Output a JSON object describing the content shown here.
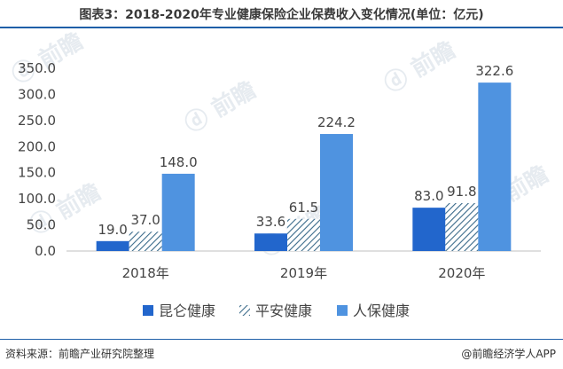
{
  "title": "图表3：2018-2020年专业健康保险企业保费收入变化情况(单位：亿元)",
  "footer": {
    "source": "资料来源：前瞻产业研究院整理",
    "brand": "@前瞻经济学人APP"
  },
  "colors": {
    "rule": "#1f5fa8",
    "kunlun": "#2266cc",
    "pingan": "#3a6a8a",
    "renbao": "#4f93e0"
  },
  "chart_data": {
    "type": "bar",
    "title": "图表3：2018-2020年专业健康保险企业保费收入变化情况(单位：亿元)",
    "categories": [
      "2018年",
      "2019年",
      "2020年"
    ],
    "series": [
      {
        "name": "昆仑健康",
        "values": [
          19.0,
          33.6,
          83.0
        ],
        "labels": [
          "19.0",
          "33.6",
          "83.0"
        ],
        "pattern": "solid"
      },
      {
        "name": "平安健康",
        "values": [
          37.0,
          61.5,
          91.8
        ],
        "labels": [
          "37.0",
          "61.5",
          "91.8"
        ],
        "pattern": "hatched"
      },
      {
        "name": "人保健康",
        "values": [
          148.0,
          224.2,
          322.6
        ],
        "labels": [
          "148.0",
          "224.2",
          "322.6"
        ],
        "pattern": "solid"
      }
    ],
    "yticks": [
      "0.0",
      "50.0",
      "100.0",
      "150.0",
      "200.0",
      "250.0",
      "300.0",
      "350.0"
    ],
    "ylim": [
      0,
      350
    ],
    "xlabel": "",
    "ylabel": "",
    "legend": "bottom",
    "grid": false
  }
}
